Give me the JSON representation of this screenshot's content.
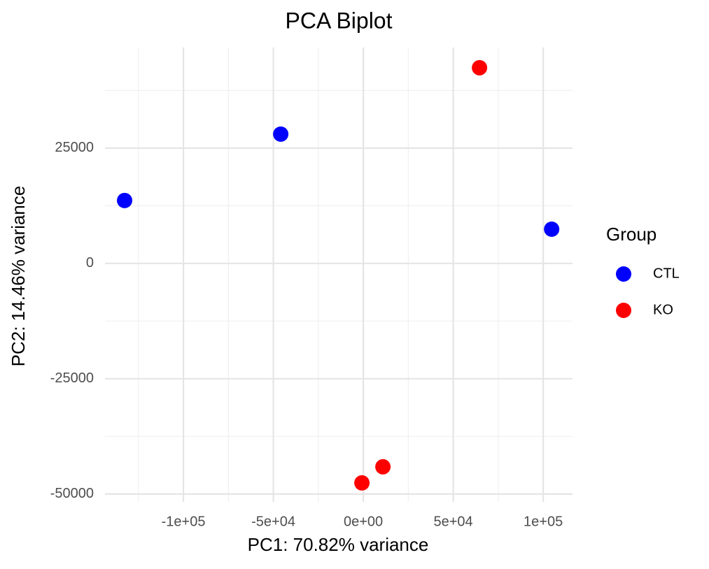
{
  "chart_data": {
    "type": "scatter",
    "title": "PCA Biplot",
    "x_label": "PC1: 70.82% variance",
    "y_label": "PC2: 14.46% variance",
    "legend_title": "Group",
    "legend_position": "right",
    "grid": true,
    "xlim": [
      -143600,
      116300
    ],
    "ylim": [
      -51700,
      46800
    ],
    "xticks": [
      {
        "value": -100000,
        "label": "-1e+05"
      },
      {
        "value": -50000,
        "label": "-5e+04"
      },
      {
        "value": 0,
        "label": "0e+00"
      },
      {
        "value": 50000,
        "label": "5e+04"
      },
      {
        "value": 100000,
        "label": "1e+05"
      }
    ],
    "yticks": [
      -50000,
      -25000,
      0,
      25000
    ],
    "series": [
      {
        "name": "CTL",
        "color": "#0000ff",
        "x": [
          -132700,
          -45900,
          104700
        ],
        "values": [
          13640,
          28030,
          7420
        ]
      },
      {
        "name": "KO",
        "color": "#ff0000",
        "x": [
          64600,
          -780,
          10900
        ],
        "values": [
          42420,
          -47580,
          -44090
        ]
      }
    ]
  }
}
